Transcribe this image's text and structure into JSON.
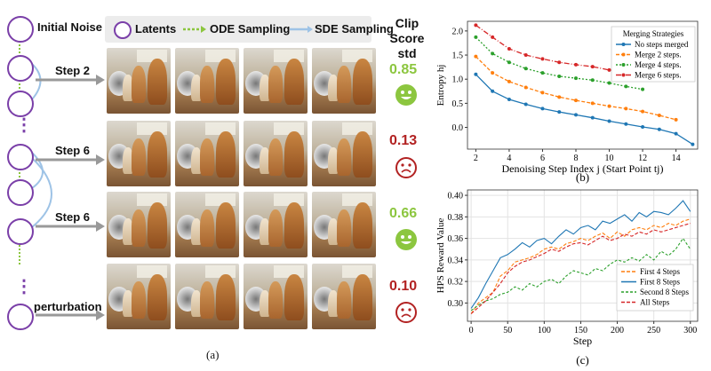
{
  "panel_a": {
    "caption": "(a)",
    "legend": {
      "latents": "Latents",
      "ode": "ODE Sampling",
      "sde": "SDE Sampling"
    },
    "header": {
      "line1": "Clip",
      "line2": "Score",
      "line3": "std"
    },
    "labels": {
      "initial_noise": "Initial Noise",
      "perturbation": "perturbation"
    },
    "rows": [
      {
        "step": "Step 2",
        "score": "0.85",
        "face": "happy",
        "color": "#8cc63f"
      },
      {
        "step": "Step 6",
        "score": "0.13",
        "face": "sad",
        "color": "#b22222"
      },
      {
        "step": "Step 6",
        "score": "0.66",
        "face": "happy",
        "color": "#8cc63f"
      },
      {
        "step": "",
        "score": "0.10",
        "face": "sad",
        "color": "#b22222"
      }
    ],
    "colors": {
      "node": "#7a3fa8",
      "ode": "#8cc63f",
      "sde": "#9ec3e6"
    }
  },
  "chart_data": [
    {
      "type": "line",
      "caption": "(b)",
      "xlabel": "Denoising Step Index j (Start Point tj)",
      "ylabel": "Entropy hj",
      "xlim": [
        1.5,
        15.3
      ],
      "ylim": [
        -0.45,
        2.2
      ],
      "xticks": [
        2,
        4,
        6,
        8,
        10,
        12,
        14
      ],
      "yticks": [
        "0.0",
        "0.5",
        "1.0",
        "1.5",
        "2.0"
      ],
      "ytick_values": [
        0.0,
        0.5,
        1.0,
        1.5,
        2.0
      ],
      "legend_title": "Merging Strategies",
      "legend_position": "top-right",
      "series": [
        {
          "name": "No steps merged",
          "color": "#1f77b4",
          "dash": "",
          "x": [
            2,
            3,
            4,
            5,
            6,
            7,
            8,
            9,
            10,
            11,
            12,
            13,
            14,
            15
          ],
          "y": [
            1.1,
            0.75,
            0.58,
            0.48,
            0.39,
            0.32,
            0.26,
            0.2,
            0.13,
            0.07,
            0.01,
            -0.04,
            -0.13,
            -0.35
          ]
        },
        {
          "name": "Merge 2 steps.",
          "color": "#ff7f0e",
          "dash": "4,2",
          "x": [
            2,
            3,
            4,
            5,
            6,
            7,
            8,
            9,
            10,
            11,
            12,
            13,
            14
          ],
          "y": [
            1.47,
            1.13,
            0.95,
            0.83,
            0.72,
            0.63,
            0.56,
            0.5,
            0.44,
            0.39,
            0.33,
            0.25,
            0.16
          ]
        },
        {
          "name": "Merge 4 steps.",
          "color": "#2ca02c",
          "dash": "2,2",
          "x": [
            2,
            3,
            4,
            5,
            6,
            7,
            8,
            9,
            10,
            11,
            12
          ],
          "y": [
            1.87,
            1.53,
            1.35,
            1.22,
            1.13,
            1.06,
            1.02,
            0.98,
            0.92,
            0.85,
            0.79
          ]
        },
        {
          "name": "Merge 6 steps.",
          "color": "#d62728",
          "dash": "6,2,1,2",
          "x": [
            2,
            3,
            4,
            5,
            6,
            7,
            8,
            9,
            10
          ],
          "y": [
            2.12,
            1.87,
            1.63,
            1.5,
            1.42,
            1.35,
            1.3,
            1.26,
            1.19
          ]
        }
      ]
    },
    {
      "type": "line",
      "caption": "(c)",
      "xlabel": "Step",
      "ylabel": "HPS Reward Value",
      "xlim": [
        -5,
        310
      ],
      "ylim": [
        0.283,
        0.405
      ],
      "xticks": [
        0,
        50,
        100,
        150,
        200,
        250,
        300
      ],
      "yticks": [
        "0.30",
        "0.32",
        "0.34",
        "0.36",
        "0.38",
        "0.40"
      ],
      "ytick_values": [
        0.3,
        0.32,
        0.34,
        0.36,
        0.38,
        0.4
      ],
      "grid": true,
      "legend_position": "bottom-right",
      "series": [
        {
          "name": "First 4 Steps",
          "color": "#ff7f0e",
          "dash": "4,2",
          "x": [
            0,
            10,
            20,
            30,
            40,
            50,
            60,
            70,
            80,
            90,
            100,
            110,
            120,
            130,
            140,
            150,
            160,
            170,
            180,
            190,
            200,
            210,
            220,
            230,
            240,
            250,
            260,
            270,
            280,
            290,
            300
          ],
          "y": [
            0.29,
            0.3,
            0.305,
            0.31,
            0.325,
            0.33,
            0.338,
            0.34,
            0.342,
            0.345,
            0.35,
            0.352,
            0.35,
            0.355,
            0.357,
            0.36,
            0.358,
            0.362,
            0.365,
            0.36,
            0.366,
            0.362,
            0.368,
            0.37,
            0.368,
            0.372,
            0.37,
            0.374,
            0.372,
            0.376,
            0.378
          ]
        },
        {
          "name": "First 8 Steps",
          "color": "#1f77b4",
          "dash": "",
          "x": [
            0,
            10,
            20,
            30,
            40,
            50,
            60,
            70,
            80,
            90,
            100,
            110,
            120,
            130,
            140,
            150,
            160,
            170,
            180,
            190,
            200,
            210,
            220,
            230,
            240,
            250,
            260,
            270,
            280,
            290,
            300
          ],
          "y": [
            0.295,
            0.305,
            0.318,
            0.33,
            0.342,
            0.345,
            0.35,
            0.356,
            0.352,
            0.358,
            0.36,
            0.355,
            0.362,
            0.368,
            0.364,
            0.37,
            0.372,
            0.368,
            0.376,
            0.374,
            0.378,
            0.382,
            0.376,
            0.384,
            0.38,
            0.385,
            0.384,
            0.382,
            0.388,
            0.395,
            0.385
          ]
        },
        {
          "name": "Second 8 Steps",
          "color": "#2ca02c",
          "dash": "3,2",
          "x": [
            0,
            10,
            20,
            30,
            40,
            50,
            60,
            70,
            80,
            90,
            100,
            110,
            120,
            130,
            140,
            150,
            160,
            170,
            180,
            190,
            200,
            210,
            220,
            230,
            240,
            250,
            260,
            270,
            280,
            290,
            300
          ],
          "y": [
            0.293,
            0.298,
            0.302,
            0.304,
            0.308,
            0.31,
            0.315,
            0.312,
            0.318,
            0.315,
            0.32,
            0.322,
            0.318,
            0.325,
            0.33,
            0.328,
            0.326,
            0.332,
            0.33,
            0.336,
            0.34,
            0.338,
            0.342,
            0.339,
            0.345,
            0.34,
            0.348,
            0.344,
            0.35,
            0.36,
            0.35
          ]
        },
        {
          "name": "All Steps",
          "color": "#d62728",
          "dash": "4,2",
          "x": [
            0,
            10,
            20,
            30,
            40,
            50,
            60,
            70,
            80,
            90,
            100,
            110,
            120,
            130,
            140,
            150,
            160,
            170,
            180,
            190,
            200,
            210,
            220,
            230,
            240,
            250,
            260,
            270,
            280,
            290,
            300
          ],
          "y": [
            0.29,
            0.296,
            0.302,
            0.31,
            0.318,
            0.328,
            0.334,
            0.338,
            0.34,
            0.343,
            0.346,
            0.35,
            0.348,
            0.352,
            0.355,
            0.356,
            0.354,
            0.358,
            0.362,
            0.358,
            0.36,
            0.364,
            0.362,
            0.366,
            0.364,
            0.368,
            0.366,
            0.368,
            0.37,
            0.372,
            0.374
          ]
        }
      ]
    }
  ]
}
